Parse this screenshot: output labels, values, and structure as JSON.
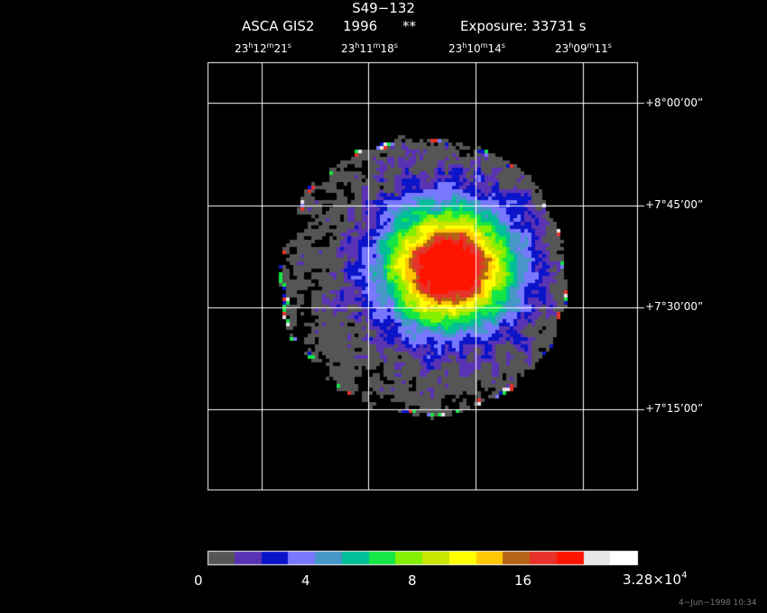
{
  "header": {
    "object": "S49−132",
    "instrument": "ASCA GIS2",
    "year": "1996",
    "marker": "**",
    "exposure": "Exposure: 33731  s"
  },
  "ra_ticks": [
    {
      "h": "23",
      "m": "12",
      "s": "21"
    },
    {
      "h": "23",
      "m": "11",
      "s": "18"
    },
    {
      "h": "23",
      "m": "10",
      "s": "14"
    },
    {
      "h": "23",
      "m": "09",
      "s": "11"
    }
  ],
  "dec_ticks": [
    "+8°00’00”",
    "+7°45’00”",
    "+7°30’00”",
    "+7°15’00”"
  ],
  "colorbar": {
    "colors": [
      "#555555",
      "#5a32b4",
      "#0a14c8",
      "#7878ff",
      "#4696c8",
      "#00be96",
      "#14e646",
      "#82f000",
      "#c8e600",
      "#ffff00",
      "#ffc800",
      "#b46414",
      "#e63228",
      "#ff1400",
      "#e6e6e6",
      "#ffffff"
    ],
    "labels": {
      "l0": "0",
      "l1": "4",
      "l2": "8",
      "l3": "16",
      "max_mantissa": "3.28×10",
      "max_exp": "4"
    }
  },
  "timestamp": "4−Jun−1998 10:34"
}
